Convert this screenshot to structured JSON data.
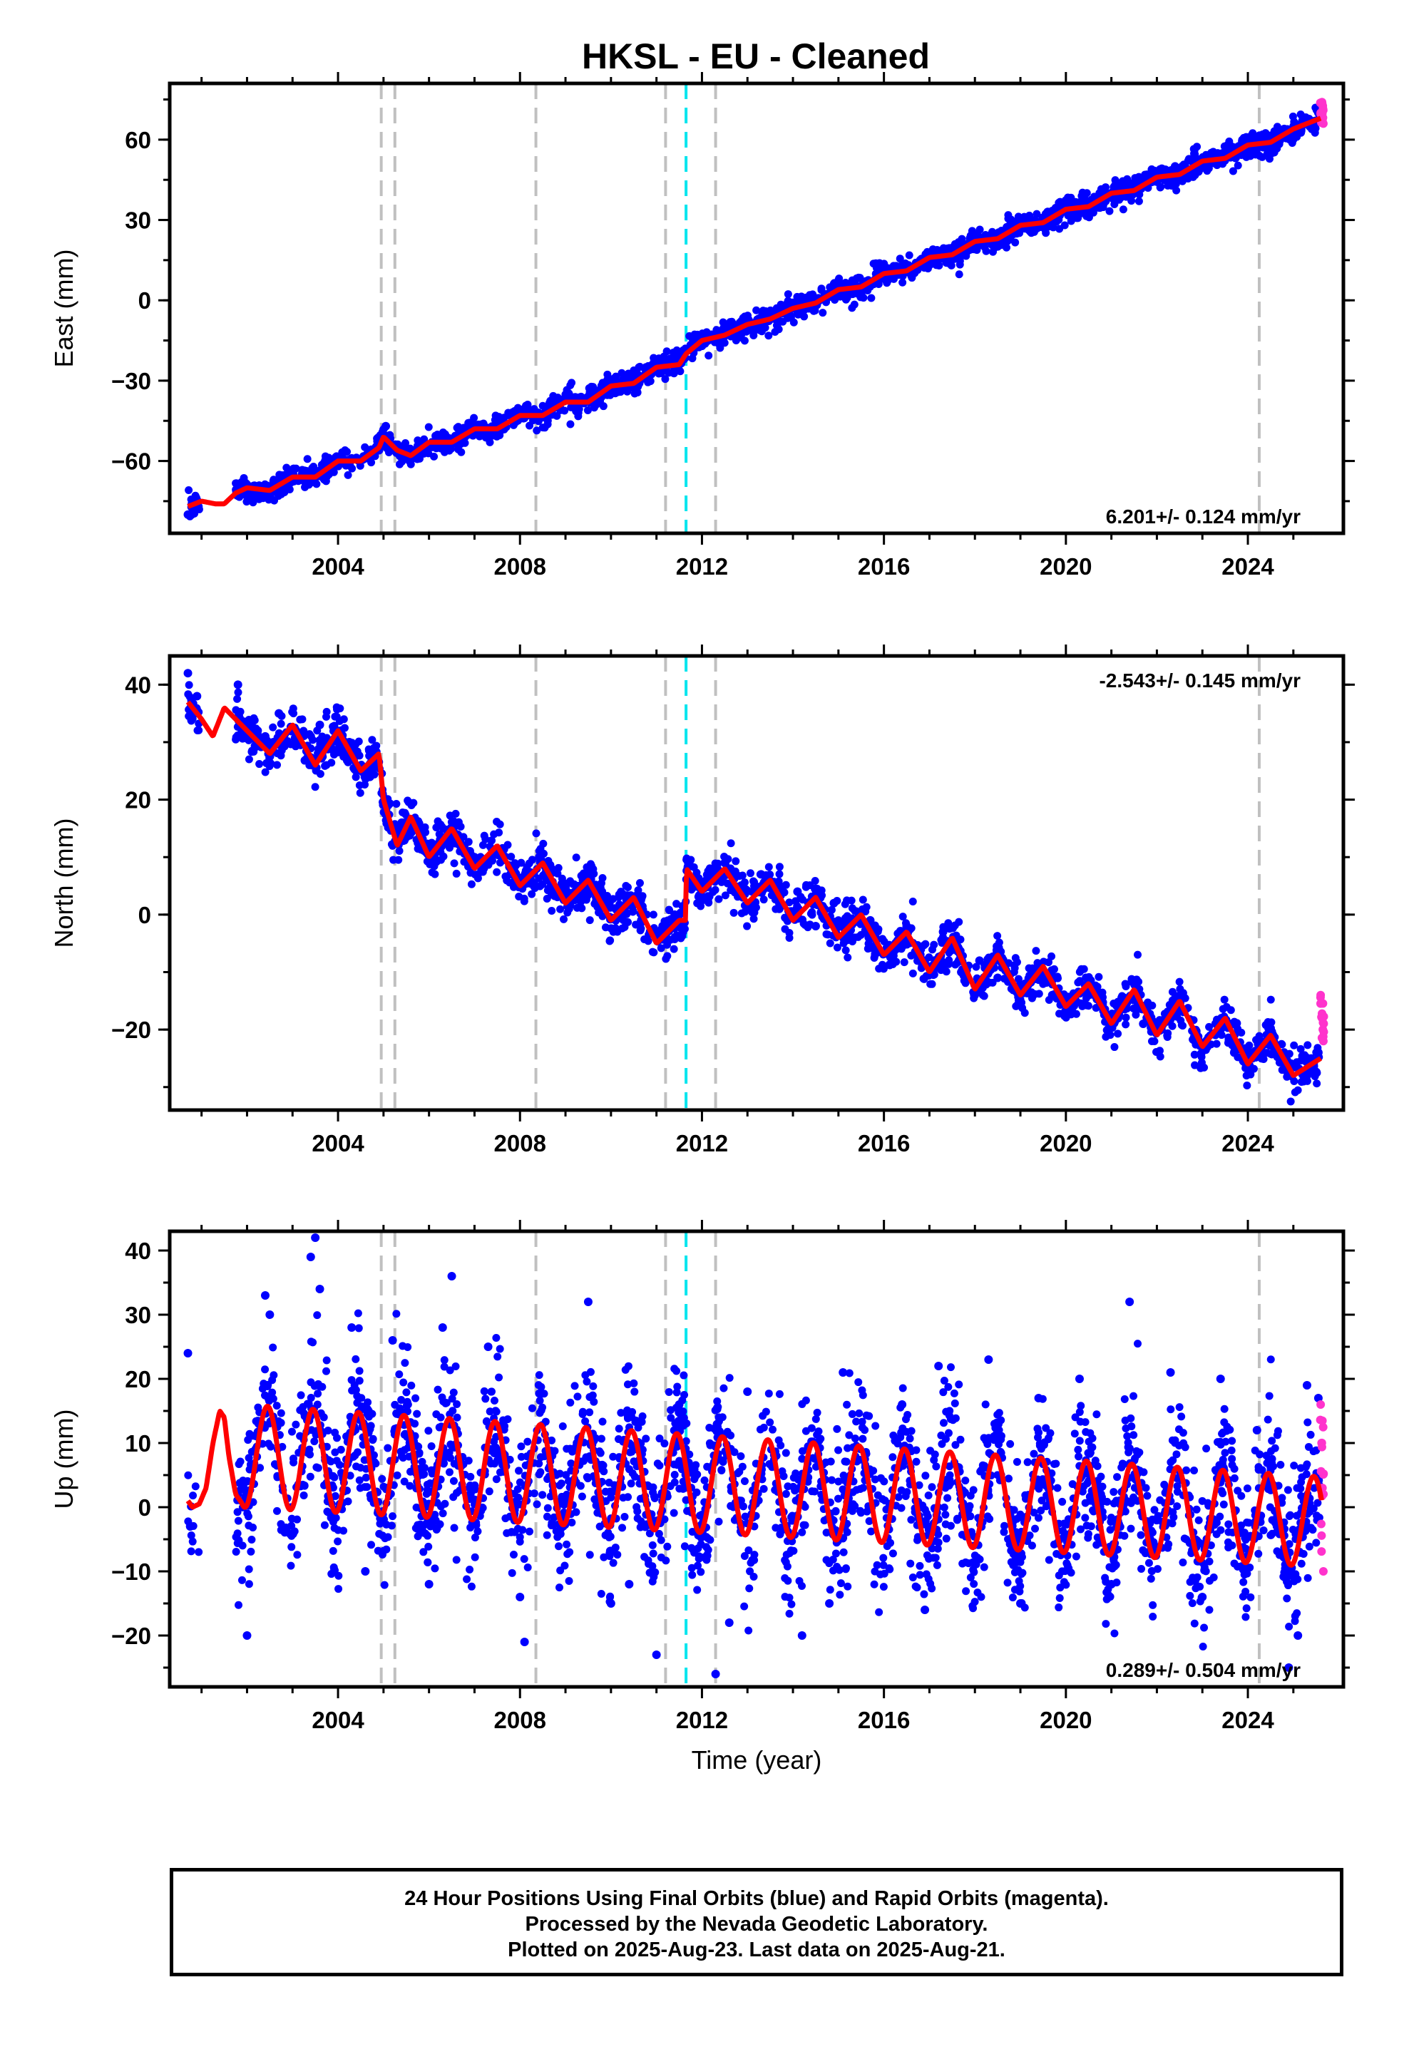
{
  "title": "HKSL  - EU - Cleaned",
  "footer": {
    "line1": "24 Hour Positions Using Final Orbits (blue) and Rapid Orbits (magenta).",
    "line2": "Processed by the Nevada Geodetic Laboratory.",
    "line3": "Plotted on 2025-Aug-23. Last data on 2025-Aug-21."
  },
  "colors": {
    "final_points": "#0000ff",
    "rapid_points": "#ff33cc",
    "model": "#ff0000",
    "event_line": "#c0c0c0",
    "highlight_event_line": "#00e5ee"
  },
  "chart_data": [
    {
      "type": "scatter",
      "component": "East",
      "ylabel": "East (mm)",
      "xlabel": "",
      "xlim": [
        2000.3,
        2026.1
      ],
      "ylim": [
        -87,
        81
      ],
      "xticks": [
        2004,
        2008,
        2012,
        2016,
        2020,
        2024
      ],
      "yticks": [
        -60,
        -30,
        0,
        30,
        60
      ],
      "rate_label": "6.201+/- 0.124 mm/yr",
      "rate_position": "bottom-right",
      "event_lines": [
        2004.95,
        2005.25,
        2008.35,
        2011.2,
        2011.65,
        2012.3,
        2024.25
      ],
      "highlight_event": 2011.65,
      "model": {
        "x": [
          2000.7,
          2001.0,
          2001.3,
          2001.5,
          2001.75,
          2002.0,
          2002.5,
          2003.0,
          2003.5,
          2004.0,
          2004.5,
          2004.9,
          2005.0,
          2005.3,
          2005.6,
          2006.0,
          2006.5,
          2007.0,
          2007.5,
          2008.0,
          2008.5,
          2009.0,
          2009.5,
          2010.0,
          2010.5,
          2011.0,
          2011.5,
          2011.65,
          2012.0,
          2012.5,
          2013.0,
          2013.5,
          2014.0,
          2014.5,
          2015.0,
          2015.5,
          2016.0,
          2016.5,
          2017.0,
          2017.5,
          2018.0,
          2018.5,
          2019.0,
          2019.5,
          2020.0,
          2020.5,
          2021.0,
          2021.5,
          2022.0,
          2022.5,
          2023.0,
          2023.5,
          2024.0,
          2024.5,
          2025.0,
          2025.6
        ],
        "y": [
          -77,
          -75,
          -76,
          -76,
          -72,
          -70,
          -71,
          -66,
          -66,
          -60,
          -60,
          -55,
          -51,
          -56,
          -58,
          -53,
          -53,
          -48,
          -48,
          -43,
          -43,
          -38,
          -38,
          -32,
          -31,
          -25,
          -24,
          -20,
          -15,
          -13,
          -9,
          -7,
          -3,
          -1,
          4,
          5,
          10,
          11,
          16,
          17,
          22,
          23,
          28,
          29,
          34,
          35,
          40,
          41,
          46,
          47,
          52,
          53,
          58,
          59,
          64,
          68
        ],
        "label": "model fit"
      },
      "final_positions": {
        "x": [
          2000.7,
          2000.9,
          2001.8,
          2002.0,
          2002.3,
          2002.6,
          2003.0,
          2003.3,
          2003.6,
          2004.0,
          2004.3,
          2004.6,
          2004.9,
          2005.05,
          2005.3,
          2005.6,
          2006.0,
          2006.4,
          2006.8,
          2007.2,
          2007.6,
          2008.0,
          2008.4,
          2008.8,
          2009.2,
          2009.6,
          2010.0,
          2010.4,
          2010.8,
          2011.2,
          2011.6,
          2012.0,
          2012.4,
          2012.8,
          2013.2,
          2013.6,
          2014.0,
          2014.4,
          2014.8,
          2015.2,
          2015.6,
          2016.0,
          2016.4,
          2016.8,
          2017.2,
          2017.6,
          2018.0,
          2018.4,
          2018.8,
          2019.2,
          2019.6,
          2020.0,
          2020.4,
          2020.8,
          2021.2,
          2021.6,
          2022.0,
          2022.4,
          2022.8,
          2023.2,
          2023.6,
          2024.0,
          2024.4,
          2024.8,
          2025.2,
          2025.55
        ],
        "y": [
          -80,
          -76,
          -73,
          -70,
          -71,
          -69,
          -67,
          -65,
          -64,
          -61,
          -59,
          -59,
          -56,
          -47,
          -56,
          -57,
          -54,
          -53,
          -50,
          -47,
          -47,
          -43,
          -42,
          -39,
          -37,
          -36,
          -33,
          -31,
          -28,
          -25,
          -22,
          -17,
          -14,
          -11,
          -8,
          -6,
          -3,
          -1,
          2,
          4,
          7,
          9,
          12,
          15,
          17,
          19,
          22,
          25,
          27,
          30,
          33,
          35,
          37,
          40,
          42,
          44,
          47,
          50,
          52,
          55,
          57,
          60,
          62,
          64,
          67,
          70
        ],
        "label": "Final Orbits"
      },
      "rapid_positions": {
        "x": [
          2025.6,
          2025.63,
          2025.66
        ],
        "y": [
          70,
          74,
          66
        ],
        "label": "Rapid Orbits"
      }
    },
    {
      "type": "scatter",
      "component": "North",
      "ylabel": "North (mm)",
      "xlabel": "",
      "xlim": [
        2000.3,
        2026.1
      ],
      "ylim": [
        -34,
        45
      ],
      "xticks": [
        2004,
        2008,
        2012,
        2016,
        2020,
        2024
      ],
      "yticks": [
        -20,
        0,
        20,
        40
      ],
      "rate_label": "-2.543+/- 0.145 mm/yr",
      "rate_position": "top-right",
      "event_lines": [
        2004.95,
        2005.25,
        2008.35,
        2011.2,
        2011.65,
        2012.3,
        2024.25
      ],
      "highlight_event": 2011.65,
      "model": {
        "x": [
          2000.7,
          2001.0,
          2001.25,
          2001.5,
          2001.75,
          2002.0,
          2002.5,
          2003.0,
          2003.5,
          2004.0,
          2004.5,
          2004.9,
          2005.0,
          2005.3,
          2005.6,
          2006.0,
          2006.5,
          2007.0,
          2007.5,
          2008.0,
          2008.5,
          2009.0,
          2009.5,
          2010.0,
          2010.5,
          2011.0,
          2011.5,
          2011.64,
          2011.66,
          2012.0,
          2012.5,
          2013.0,
          2013.5,
          2014.0,
          2014.5,
          2015.0,
          2015.5,
          2016.0,
          2016.5,
          2017.0,
          2017.5,
          2018.0,
          2018.5,
          2019.0,
          2019.5,
          2020.0,
          2020.5,
          2021.0,
          2021.5,
          2022.0,
          2022.5,
          2023.0,
          2023.5,
          2024.0,
          2024.5,
          2025.0,
          2025.6
        ],
        "y": [
          37,
          34,
          31,
          36,
          34,
          32,
          28,
          33,
          26,
          32,
          25,
          28,
          20,
          12,
          17,
          10,
          15,
          8,
          12,
          5,
          9,
          2,
          6,
          -1,
          3,
          -5,
          -1,
          -1,
          8,
          4,
          8,
          2,
          6,
          -1,
          3,
          -4,
          0,
          -7,
          -3,
          -10,
          -4,
          -13,
          -7,
          -14,
          -9,
          -16,
          -12,
          -19,
          -13,
          -21,
          -15,
          -23,
          -18,
          -26,
          -21,
          -28,
          -25
        ],
        "label": "model fit"
      },
      "final_positions": {
        "x": [
          2000.7,
          2000.9,
          2001.8,
          2002.1,
          2002.4,
          2002.7,
          2003.0,
          2003.3,
          2003.6,
          2004.0,
          2004.4,
          2004.8,
          2005.1,
          2005.4,
          2005.8,
          2006.2,
          2006.6,
          2007.0,
          2007.4,
          2007.8,
          2008.2,
          2008.6,
          2009.0,
          2009.4,
          2009.8,
          2010.2,
          2010.6,
          2011.0,
          2011.4,
          2011.7,
          2012.1,
          2012.5,
          2012.9,
          2013.3,
          2013.7,
          2014.1,
          2014.5,
          2014.9,
          2015.3,
          2015.7,
          2016.1,
          2016.5,
          2016.9,
          2017.3,
          2017.7,
          2018.1,
          2018.5,
          2018.9,
          2019.3,
          2019.7,
          2020.1,
          2020.5,
          2020.9,
          2021.3,
          2021.7,
          2022.1,
          2022.5,
          2022.9,
          2023.3,
          2023.7,
          2024.1,
          2024.5,
          2024.9,
          2025.3,
          2025.55
        ],
        "y": [
          42,
          38,
          40,
          33,
          31,
          35,
          32,
          27,
          33,
          30,
          25,
          29,
          19,
          16,
          15,
          12,
          14,
          10,
          11,
          8,
          7,
          6,
          5,
          3,
          4,
          0,
          2,
          -3,
          0,
          9,
          6,
          9,
          4,
          7,
          1,
          4,
          -2,
          2,
          -4,
          -1,
          -6,
          -2,
          -8,
          -3,
          -10,
          -8,
          -11,
          -13,
          -10,
          -14,
          -16,
          -12,
          -18,
          -15,
          -19,
          -20,
          -16,
          -22,
          -19,
          -24,
          -25,
          -21,
          -27,
          -28,
          -24
        ],
        "label": "Final Orbits"
      },
      "rapid_positions": {
        "x": [
          2025.6,
          2025.63,
          2025.66
        ],
        "y": [
          -14,
          -18,
          -22
        ],
        "label": "Rapid Orbits"
      }
    },
    {
      "type": "scatter",
      "component": "Up",
      "ylabel": "Up (mm)",
      "xlabel": "Time (year)",
      "xlim": [
        2000.3,
        2026.1
      ],
      "ylim": [
        -28,
        43
      ],
      "xticks": [
        2004,
        2008,
        2012,
        2016,
        2020,
        2024
      ],
      "yticks": [
        -20,
        -10,
        0,
        10,
        20,
        30,
        40
      ],
      "rate_label": "0.289+/- 0.504 mm/yr",
      "rate_position": "bottom-right",
      "event_lines": [
        2004.95,
        2005.25,
        2008.35,
        2011.2,
        2011.65,
        2012.3,
        2024.25
      ],
      "highlight_event": 2011.65,
      "model": {
        "x": [
          2000.7,
          2000.8,
          2000.95,
          2001.1,
          2001.25,
          2001.4,
          2001.5,
          2001.6,
          2001.75,
          2001.9,
          2002.0
        ],
        "y": [
          1,
          0,
          0.5,
          3,
          10,
          15,
          14,
          8,
          2,
          0.5,
          1
        ],
        "seasonal_start": 2001.9,
        "seasonal_mean_start": 8,
        "seasonal_mean_end": -2.5,
        "seasonal_amplitude_start": 8,
        "seasonal_amplitude_end": 7,
        "seasonal_peak_phase": 0.45,
        "label": "model fit"
      },
      "final_positions": {
        "x": [
          2000.7,
          2000.75,
          2002.4,
          2002.5,
          2003.4,
          2003.5,
          2003.6,
          2004.3,
          2005.2,
          2006.3,
          2006.5,
          2007.3,
          2008.1,
          2009.5,
          2010.4,
          2011.0,
          2011.5,
          2012.3,
          2013.0,
          2014.2,
          2015.1,
          2016.4,
          2017.2,
          2018.3,
          2019.4,
          2020.3,
          2021.4,
          2022.3,
          2023.4,
          2024.2,
          2024.9,
          2025.3,
          2025.55,
          2002.0,
          2004.6,
          2006.0,
          2008.0,
          2010.0,
          2012.6,
          2014.8,
          2016.9,
          2019.0,
          2021.0,
          2023.0,
          2025.1
        ],
        "y": [
          24,
          -3,
          33,
          30,
          39,
          42,
          34,
          28,
          26,
          28,
          36,
          25,
          -21,
          32,
          -12,
          -23,
          16,
          -26,
          18,
          -20,
          21,
          16,
          22,
          23,
          17,
          20,
          32,
          21,
          20,
          12,
          -25,
          19,
          17,
          -20,
          -10,
          -12,
          -14,
          -15,
          -18,
          -15,
          -16,
          -15,
          -12,
          -14,
          -20
        ],
        "label": "Final Orbits"
      },
      "rapid_positions": {
        "x": [
          2025.6,
          2025.62,
          2025.64,
          2025.66
        ],
        "y": [
          16,
          10,
          3,
          -10
        ],
        "label": "Rapid Orbits"
      }
    }
  ]
}
